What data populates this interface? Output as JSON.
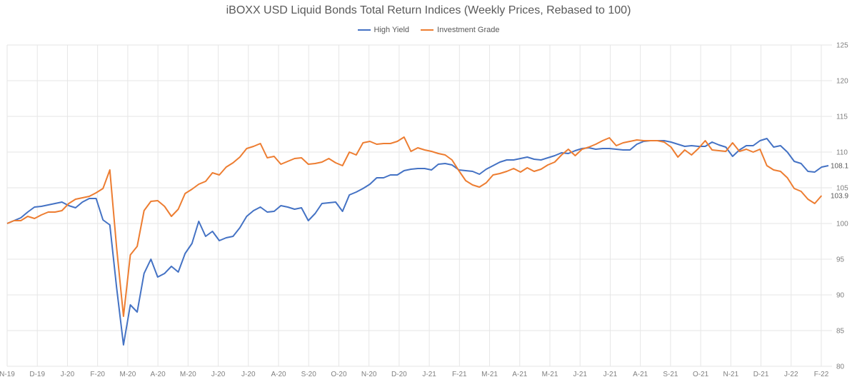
{
  "chart_data": {
    "type": "line",
    "title": "iBOXX USD Liquid Bonds Total Return Indices (Weekly Prices, Rebased to 100)",
    "xlabel": "",
    "ylabel": "",
    "ylim": [
      80,
      125
    ],
    "yticks": [
      80,
      85,
      90,
      95,
      100,
      105,
      110,
      115,
      120,
      125
    ],
    "xticks": [
      "N-19",
      "D-19",
      "J-20",
      "F-20",
      "M-20",
      "A-20",
      "M-20",
      "J-20",
      "J-20",
      "A-20",
      "S-20",
      "O-20",
      "N-20",
      "D-20",
      "J-21",
      "F-21",
      "M-21",
      "A-21",
      "M-21",
      "J-21",
      "J-21",
      "A-21",
      "S-21",
      "O-21",
      "N-21",
      "D-21",
      "J-22",
      "F-22"
    ],
    "grid": true,
    "legend_position": "top",
    "series": [
      {
        "name": "High Yield",
        "color": "#4472C4",
        "end_label": "108.1",
        "values": [
          100.0,
          100.4,
          100.8,
          101.6,
          102.3,
          102.4,
          102.6,
          102.8,
          103.0,
          102.5,
          102.2,
          103.0,
          103.5,
          103.5,
          100.5,
          99.8,
          91.0,
          83.0,
          88.6,
          87.6,
          93.0,
          95.0,
          92.5,
          93.0,
          94.0,
          93.2,
          95.8,
          97.2,
          100.3,
          98.2,
          98.9,
          97.6,
          98.0,
          98.2,
          99.4,
          101.0,
          101.8,
          102.3,
          101.6,
          101.7,
          102.5,
          102.3,
          102.0,
          102.2,
          100.4,
          101.4,
          102.8,
          102.9,
          103.0,
          101.7,
          104.0,
          104.4,
          104.9,
          105.5,
          106.4,
          106.4,
          106.8,
          106.8,
          107.4,
          107.6,
          107.7,
          107.7,
          107.5,
          108.3,
          108.4,
          108.2,
          107.5,
          107.4,
          107.3,
          106.9,
          107.6,
          108.1,
          108.6,
          108.9,
          108.9,
          109.1,
          109.3,
          109.0,
          108.9,
          109.2,
          109.5,
          109.9,
          109.8,
          110.2,
          110.5,
          110.6,
          110.4,
          110.5,
          110.5,
          110.4,
          110.3,
          110.3,
          111.1,
          111.5,
          111.6,
          111.6,
          111.6,
          111.4,
          111.1,
          110.8,
          110.9,
          110.8,
          110.8,
          111.4,
          111.0,
          110.7,
          109.4,
          110.3,
          110.9,
          110.9,
          111.6,
          111.9,
          110.7,
          110.9,
          110.0,
          108.7,
          108.4,
          107.3,
          107.2,
          107.9,
          108.1
        ]
      },
      {
        "name": "Investment Grade",
        "color": "#ED7D31",
        "end_label": "103.9",
        "values": [
          100.0,
          100.4,
          100.4,
          101.0,
          100.7,
          101.2,
          101.6,
          101.6,
          101.8,
          102.8,
          103.4,
          103.6,
          103.8,
          104.3,
          104.9,
          107.5,
          96.6,
          87.0,
          95.6,
          96.8,
          101.8,
          103.1,
          103.2,
          102.4,
          101.0,
          102.0,
          104.2,
          104.8,
          105.5,
          105.9,
          107.1,
          106.8,
          107.9,
          108.5,
          109.3,
          110.5,
          110.8,
          111.2,
          109.2,
          109.4,
          108.3,
          108.7,
          109.1,
          109.2,
          108.3,
          108.4,
          108.6,
          109.1,
          108.5,
          108.1,
          110.0,
          109.6,
          111.3,
          111.5,
          111.1,
          111.2,
          111.2,
          111.5,
          112.1,
          110.1,
          110.6,
          110.3,
          110.1,
          109.8,
          109.6,
          108.9,
          107.4,
          106.0,
          105.4,
          105.1,
          105.7,
          106.8,
          107.0,
          107.3,
          107.7,
          107.2,
          107.8,
          107.3,
          107.6,
          108.2,
          108.6,
          109.6,
          110.4,
          109.5,
          110.4,
          110.7,
          111.1,
          111.6,
          112.0,
          110.9,
          111.3,
          111.5,
          111.7,
          111.6,
          111.6,
          111.6,
          111.4,
          110.7,
          109.3,
          110.3,
          109.6,
          110.5,
          111.6,
          110.3,
          110.2,
          110.1,
          111.3,
          110.1,
          110.4,
          110.0,
          110.4,
          108.1,
          107.5,
          107.3,
          106.4,
          104.9,
          104.5,
          103.4,
          102.8,
          103.9
        ]
      }
    ]
  }
}
